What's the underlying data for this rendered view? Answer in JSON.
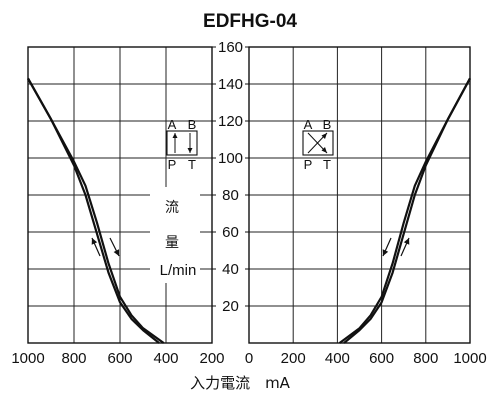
{
  "chart_data": {
    "type": "line",
    "title": "EDFHG-04",
    "xlabel": "入力電流　mA",
    "ylabel_lines": [
      "流",
      "量",
      "L/min"
    ],
    "xlim_left_panel": [
      1000,
      200
    ],
    "xlim_right_panel": [
      0,
      1000
    ],
    "ylim": [
      0,
      160
    ],
    "x_ticks": [
      "1000",
      "800",
      "600",
      "400",
      "200",
      "0",
      "200",
      "400",
      "600",
      "800",
      "1000"
    ],
    "y_ticks": [
      "20",
      "40",
      "60",
      "80",
      "100",
      "120",
      "140",
      "160"
    ],
    "grid": true,
    "left_panel_symbol": {
      "top": [
        "A",
        "B"
      ],
      "bottom": [
        "P",
        "T"
      ]
    },
    "right_panel_symbol": {
      "top": [
        "A",
        "B"
      ],
      "bottom": [
        "P",
        "T"
      ]
    },
    "series": [
      {
        "panel": "left",
        "x": [
          1000,
          900,
          800,
          750,
          700,
          650,
          600,
          550,
          500,
          430
        ],
        "y": [
          143,
          121,
          96,
          80,
          59,
          38,
          22,
          13,
          7,
          0
        ]
      },
      {
        "panel": "left",
        "x": [
          1000,
          900,
          800,
          750,
          700,
          650,
          600,
          550,
          500,
          410
        ],
        "y": [
          143,
          121,
          98,
          85,
          65,
          43,
          25,
          15,
          8,
          0
        ]
      },
      {
        "panel": "right",
        "x": [
          430,
          500,
          550,
          600,
          650,
          700,
          750,
          800,
          900,
          1000
        ],
        "y": [
          0,
          7,
          13,
          22,
          38,
          59,
          80,
          96,
          121,
          143
        ]
      },
      {
        "panel": "right",
        "x": [
          410,
          500,
          550,
          600,
          650,
          700,
          750,
          800,
          900,
          1000
        ],
        "y": [
          0,
          8,
          15,
          25,
          43,
          65,
          85,
          98,
          121,
          143
        ]
      }
    ]
  }
}
